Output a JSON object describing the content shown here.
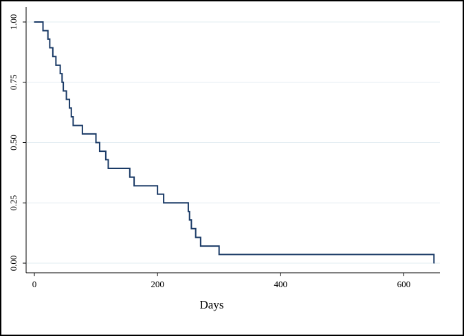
{
  "chart_data": {
    "type": "line",
    "title": "",
    "xlabel": "Days",
    "ylabel": "",
    "xlim": [
      0,
      650
    ],
    "ylim": [
      0,
      1
    ],
    "grid": true,
    "legend": "none",
    "x_ticks": [
      0,
      200,
      400,
      600
    ],
    "x_tick_labels": [
      "0",
      "200",
      "400",
      "600"
    ],
    "y_ticks": [
      0,
      0.25,
      0.5,
      0.75,
      1.0
    ],
    "y_tick_labels": [
      "0.00",
      "0.25",
      "0.50",
      "0.75",
      "1.00"
    ],
    "series": [
      {
        "step": "post",
        "x": [
          0,
          14,
          22,
          25,
          30,
          35,
          42,
          45,
          47,
          52,
          57,
          60,
          63,
          78,
          100,
          106,
          116,
          120,
          155,
          162,
          200,
          210,
          250,
          252,
          255,
          262,
          270,
          300,
          649
        ],
        "y": [
          1.0,
          0.964,
          0.929,
          0.893,
          0.857,
          0.821,
          0.786,
          0.75,
          0.714,
          0.679,
          0.643,
          0.607,
          0.571,
          0.536,
          0.5,
          0.464,
          0.429,
          0.393,
          0.357,
          0.321,
          0.286,
          0.25,
          0.214,
          0.179,
          0.143,
          0.107,
          0.071,
          0.036,
          0.0
        ]
      }
    ],
    "colors": {
      "line": "#1a3a66",
      "grid": "#e2ecf1",
      "axis": "#000000"
    }
  }
}
